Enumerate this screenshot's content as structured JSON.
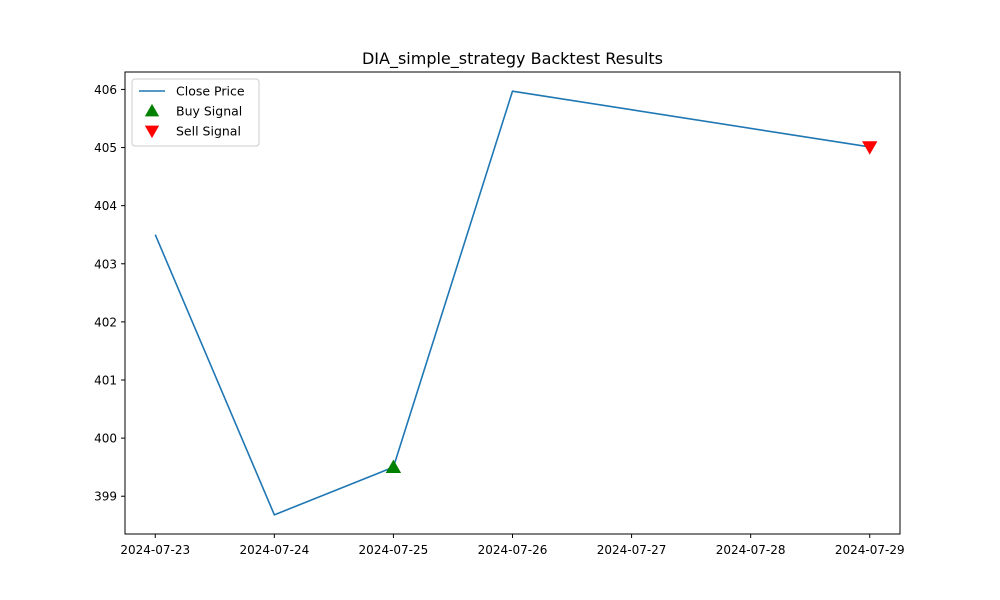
{
  "chart_data": {
    "type": "line",
    "title": "DIA_simple_strategy Backtest Results",
    "xlabel": "",
    "ylabel": "",
    "x": [
      "2024-07-23",
      "2024-07-24",
      "2024-07-25",
      "2024-07-26",
      "2024-07-27",
      "2024-07-28",
      "2024-07-29"
    ],
    "xlim": [
      "2024-07-22T17:54",
      "2024-07-29T06:06"
    ],
    "ylim": [
      398.35,
      406.3
    ],
    "yticks": [
      399,
      400,
      401,
      402,
      403,
      404,
      405,
      406
    ],
    "series": [
      {
        "name": "Close Price",
        "kind": "line",
        "color": "#1f77b4",
        "points": [
          {
            "x": "2024-07-23",
            "y": 403.5
          },
          {
            "x": "2024-07-24",
            "y": 398.68
          },
          {
            "x": "2024-07-25",
            "y": 399.5
          },
          {
            "x": "2024-07-26",
            "y": 405.97
          },
          {
            "x": "2024-07-29",
            "y": 405.01
          }
        ]
      },
      {
        "name": "Buy Signal",
        "kind": "marker",
        "marker": "triangle-up",
        "color": "#008000",
        "points": [
          {
            "x": "2024-07-25",
            "y": 399.5
          }
        ]
      },
      {
        "name": "Sell Signal",
        "kind": "marker",
        "marker": "triangle-down",
        "color": "#ff0000",
        "points": [
          {
            "x": "2024-07-29",
            "y": 405.01
          }
        ]
      }
    ],
    "legend": "top-left",
    "grid": false
  }
}
